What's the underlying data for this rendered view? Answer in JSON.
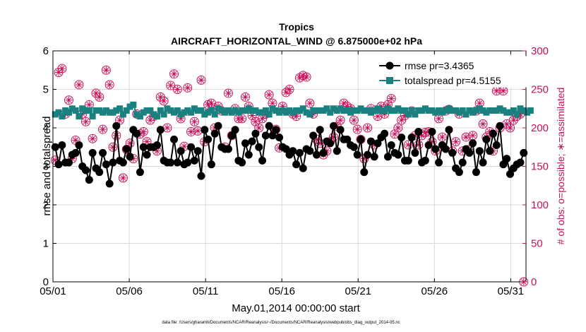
{
  "chart_data": {
    "type": "line",
    "title": "Tropics",
    "subtitle": "AIRCRAFT_HORIZONTAL_WIND @ 6.875000e+02 hPa",
    "xlabel": "May.01,2014 00:00:00 start",
    "ylabel_left": "rmse and totalspread",
    "ylabel_right": "# of obs: o=possible; ∗=assimilated",
    "footnote": "data file: /Users/gharamti/Documents/NCAR/Reanalysis/~/Documents/NCAR/Reanalysis/webpub/obs_diag_output_2014-05.nc",
    "xlim": [
      0,
      31
    ],
    "ylim_left": [
      0,
      6
    ],
    "ylim_right": [
      0,
      300
    ],
    "x_ticks": [
      0,
      5,
      10,
      15,
      20,
      25,
      30
    ],
    "x_tick_labels": [
      "05/01",
      "05/06",
      "05/11",
      "05/16",
      "05/21",
      "05/26",
      "05/31"
    ],
    "y_ticks_left": [
      0,
      1,
      2,
      3,
      4,
      5,
      6
    ],
    "y_ticks_right": [
      0,
      50,
      100,
      150,
      200,
      250,
      300
    ],
    "grid": true,
    "legend_position": "top-right",
    "colors": {
      "rmse": "#000000",
      "spread": "#1a8080",
      "obs": "#c8105a",
      "grid": "#d9d9d9"
    },
    "legend": [
      {
        "name": "rmse pr=3.4365",
        "color": "#000000",
        "marker": "circle"
      },
      {
        "name": "totalspread pr=4.5155",
        "color": "#1a8080",
        "marker": "square"
      }
    ],
    "series": [
      {
        "name": "rmse",
        "axis": "left",
        "values": [
          3.5,
          3.05,
          3.55,
          3.1,
          3.1,
          3.3,
          3.35,
          3.55,
          3.0,
          2.9,
          2.65,
          3.35,
          2.95,
          2.85,
          3.35,
          3.05,
          2.55,
          3.1,
          4.05,
          3.15,
          3.1,
          3.45,
          3.25,
          3.95,
          3.85,
          2.85,
          3.5,
          3.3,
          3.5,
          3.5,
          3.55,
          3.95,
          3.15,
          3.1,
          3.1,
          3.7,
          3.1,
          3.4,
          3.05,
          3.1,
          3.5,
          3.15,
          3.4,
          2.75,
          3.95,
          3.7,
          3.05,
          3.85,
          4.05,
          3.5,
          3.45,
          3.45,
          3.8,
          3.95,
          3.15,
          3.1,
          3.6,
          3.3,
          3.65,
          3.85,
          3.5,
          3.15,
          3.8,
          4.05,
          3.8,
          3.95,
          3.75,
          3.5,
          3.45,
          3.3,
          3.4,
          3.05,
          3.35,
          2.95,
          3.45,
          3.4,
          3.8,
          3.3,
          3.95,
          3.35,
          3.65,
          3.6,
          4.05,
          3.4,
          3.95,
          3.7,
          3.7,
          3.55,
          3.5,
          3.3,
          3.7,
          2.85,
          3.3,
          3.65,
          3.25,
          3.6,
          3.75,
          3.85,
          3.25,
          3.55,
          3.35,
          3.3,
          3.75,
          3.15,
          3.15,
          3.75,
          3.35,
          3.9,
          3.1,
          3.15,
          3.55,
          3.9,
          3.45,
          3.1,
          3.55,
          3.45,
          3.95,
          3.35,
          2.95,
          2.85,
          3.1,
          3.45,
          3.35,
          3.6,
          2.85,
          3.4,
          3.1,
          3.7,
          3.4,
          3.85,
          3.55,
          4.05,
          3.05,
          3.2,
          2.8,
          2.95,
          3.05,
          3.1,
          3.35
        ]
      },
      {
        "name": "totalspread",
        "axis": "left",
        "values": [
          4.35,
          4.4,
          4.3,
          4.45,
          4.4,
          4.5,
          4.45,
          4.3,
          4.5,
          4.45,
          4.45,
          4.3,
          4.45,
          4.45,
          4.4,
          4.45,
          4.4,
          4.4,
          4.45,
          4.5,
          4.35,
          4.45,
          4.55,
          4.6,
          4.35,
          4.3,
          4.4,
          4.45,
          4.45,
          4.35,
          4.3,
          4.45,
          4.35,
          4.5,
          4.45,
          4.4,
          4.45,
          4.35,
          4.4,
          4.45,
          4.4,
          4.5,
          4.45,
          4.45,
          4.35,
          4.4,
          4.45,
          4.35,
          4.5,
          4.45,
          4.4,
          4.45,
          4.4,
          4.45,
          4.4,
          4.45,
          4.45,
          4.5,
          4.45,
          4.45,
          4.4,
          4.4,
          4.45,
          4.35,
          4.5,
          4.45,
          4.4,
          4.45,
          4.4,
          4.45,
          4.4,
          4.45,
          4.45,
          4.5,
          4.4,
          4.35,
          4.45,
          4.45,
          4.45,
          4.45,
          4.5,
          4.4,
          4.5,
          4.45,
          4.5,
          4.45,
          4.45,
          4.4,
          4.45,
          4.45,
          4.5,
          4.45,
          4.45,
          4.4,
          4.45,
          4.5,
          4.45,
          4.45,
          4.5,
          4.45,
          4.45,
          4.5,
          4.45,
          4.45,
          4.35,
          4.45,
          4.35,
          4.45,
          4.45,
          4.5,
          4.45,
          4.45,
          4.4,
          4.45,
          4.4,
          4.45,
          4.5,
          4.45,
          4.45,
          4.4,
          4.45,
          4.35,
          4.45,
          4.4,
          4.45,
          4.5,
          4.45,
          4.4,
          4.45,
          4.45,
          4.45,
          4.5,
          4.45,
          4.4,
          4.4,
          4.45,
          4.35,
          4.5,
          4.45,
          4.4,
          4.45
        ]
      },
      {
        "name": "obs_possible",
        "axis": "right",
        "values": [
          158,
          272,
          277,
          218,
          236,
          160,
          184,
          256,
          218,
          208,
          230,
          186,
          245,
          240,
          198,
          275,
          256,
          175,
          190,
          210,
          135,
          172,
          180,
          160,
          218,
          192,
          195,
          182,
          210,
          215,
          170,
          240,
          235,
          200,
          255,
          270,
          250,
          212,
          176,
          252,
          195,
          208,
          196,
          262,
          182,
          230,
          232,
          200,
          228,
          222,
          175,
          245,
          190,
          225,
          212,
          212,
          240,
          228,
          216,
          208,
          200,
          212,
          218,
          243,
          232,
          198,
          174,
          228,
          246,
          250,
          218,
          215,
          265,
          268,
          266,
          232,
          218,
          185,
          180,
          165,
          170,
          182,
          188,
          202,
          210,
          232,
          228,
          225,
          210,
          198,
          185,
          160,
          200,
          225,
          178,
          215,
          228,
          218,
          230,
          238,
          192,
          200,
          210,
          216,
          178,
          222,
          190,
          178,
          190,
          194,
          195,
          182,
          170,
          212,
          188,
          222,
          224,
          170,
          182,
          218,
          170,
          188,
          172,
          190,
          222,
          232,
          205,
          188,
          195,
          170,
          248,
          200,
          248,
          205,
          200,
          210,
          215,
          218,
          0
        ]
      },
      {
        "name": "obs_assimilated",
        "axis": "right",
        "values": [
          158,
          272,
          277,
          218,
          236,
          160,
          184,
          256,
          218,
          208,
          230,
          186,
          245,
          240,
          198,
          275,
          256,
          175,
          190,
          210,
          135,
          172,
          180,
          160,
          218,
          192,
          195,
          182,
          210,
          215,
          170,
          240,
          235,
          200,
          255,
          270,
          250,
          212,
          176,
          252,
          195,
          208,
          196,
          262,
          182,
          230,
          232,
          200,
          228,
          222,
          175,
          245,
          190,
          225,
          212,
          212,
          240,
          228,
          216,
          208,
          200,
          212,
          218,
          243,
          232,
          198,
          174,
          228,
          246,
          250,
          218,
          215,
          265,
          268,
          266,
          232,
          218,
          185,
          180,
          165,
          170,
          182,
          188,
          202,
          210,
          232,
          228,
          225,
          210,
          198,
          185,
          160,
          200,
          225,
          178,
          215,
          228,
          218,
          230,
          238,
          192,
          200,
          210,
          216,
          178,
          222,
          190,
          178,
          190,
          194,
          195,
          182,
          170,
          212,
          188,
          222,
          224,
          170,
          182,
          218,
          170,
          188,
          172,
          190,
          222,
          232,
          205,
          188,
          195,
          170,
          248,
          200,
          248,
          205,
          200,
          210,
          215,
          218,
          0
        ]
      }
    ]
  }
}
